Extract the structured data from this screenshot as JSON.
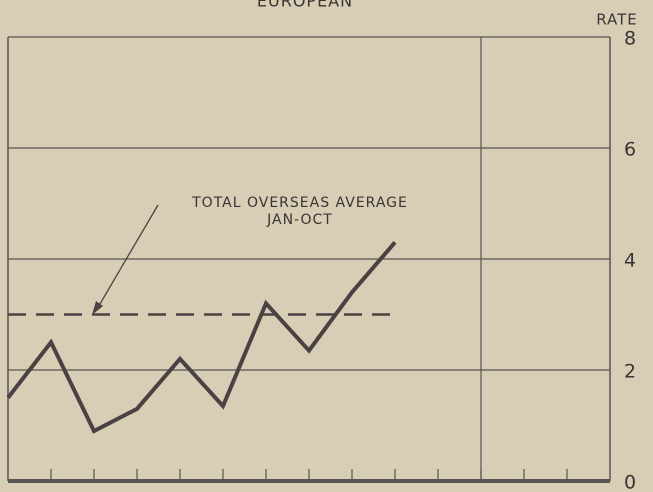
{
  "chart_data": {
    "type": "line",
    "title": "EUROPEAN",
    "y_axis_label": "RATE",
    "categories": [
      null,
      null,
      null,
      null,
      null,
      null,
      null,
      null,
      null,
      null,
      null,
      null,
      null,
      null,
      null
    ],
    "series": [
      {
        "color": "#4a4242",
        "values": [
          1.5,
          2.5,
          0.9,
          1.3,
          2.2,
          1.35,
          3.2,
          2.35,
          3.4,
          4.3,
          null,
          null,
          null,
          null,
          null
        ]
      }
    ],
    "reference_line": {
      "value": 3,
      "color": "#4a4242",
      "label": [
        "TOTAL OVERSEAS AVERAGE",
        "JAN-OCT"
      ]
    },
    "ylim": [
      0,
      8
    ],
    "yticks": [
      0,
      2,
      4,
      6,
      8
    ],
    "grid": true
  }
}
